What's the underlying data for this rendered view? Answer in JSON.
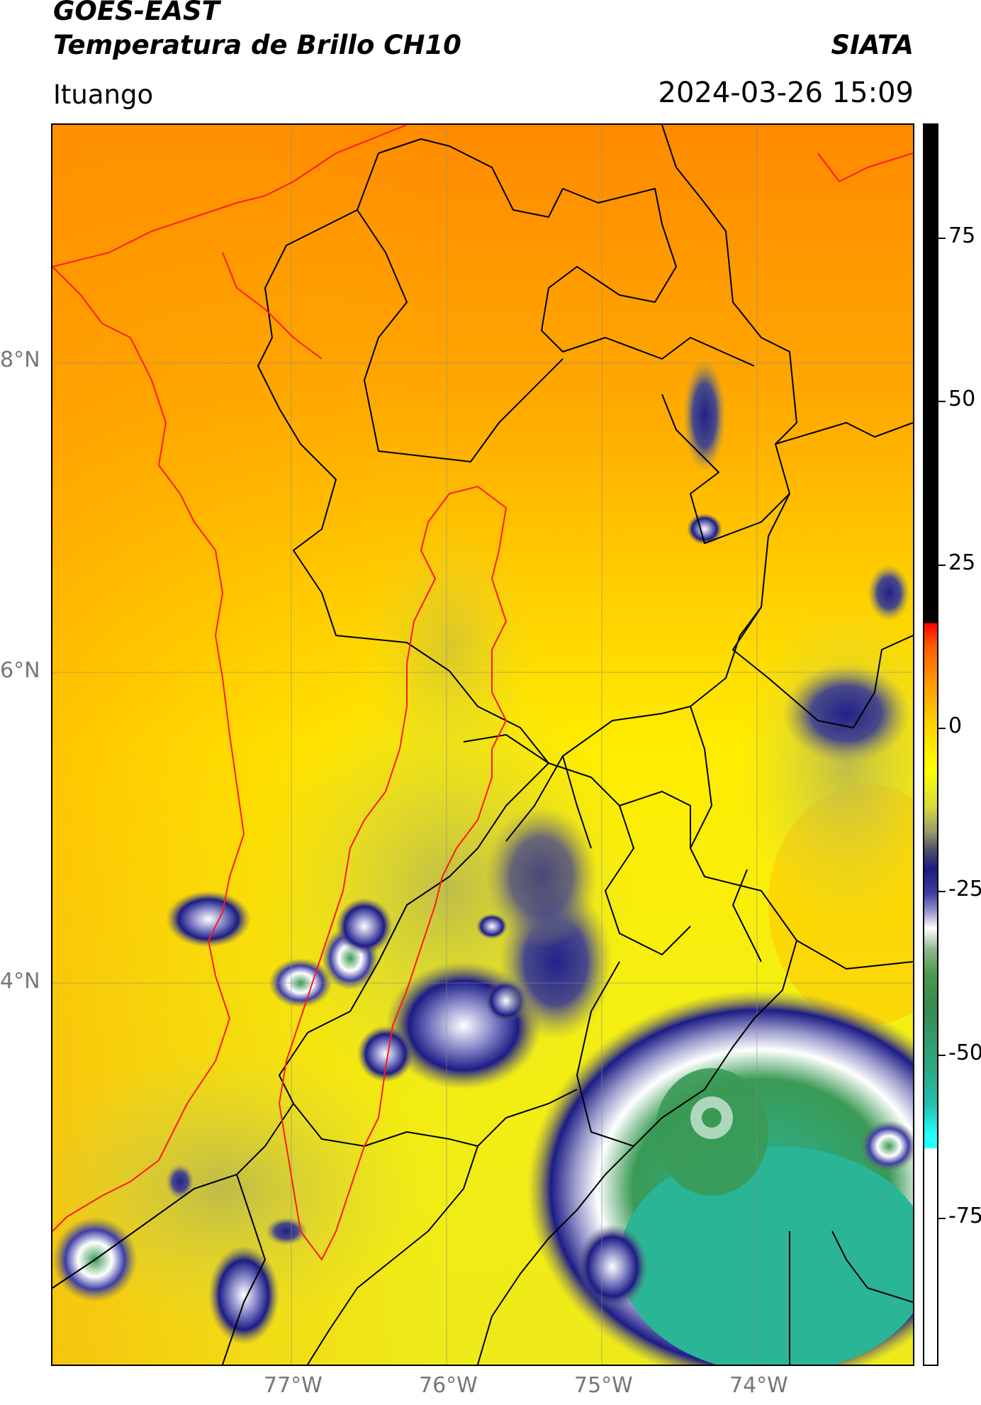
{
  "header": {
    "title_line1": "GOES-EAST",
    "title_line2": "Temperatura de Brillo CH10",
    "organization": "SIATA",
    "region": "Ituango",
    "timestamp": "2024-03-26 15:09"
  },
  "map": {
    "latitude_labels": [
      {
        "text": "8°N",
        "value": 8
      },
      {
        "text": "6°N",
        "value": 6
      },
      {
        "text": "4°N",
        "value": 4
      }
    ],
    "longitude_labels": [
      {
        "text": "77°W",
        "value": -77
      },
      {
        "text": "76°W",
        "value": -76
      },
      {
        "text": "75°W",
        "value": -75
      },
      {
        "text": "74°W",
        "value": -74
      }
    ],
    "colors": {
      "warm_background": "#ffa500",
      "border_lines": "#000000",
      "coast_and_basin": "#ff0000",
      "cold_cloud_tops": "#2bb596"
    }
  },
  "colorbar": {
    "ticks": [
      {
        "text": "75",
        "value": 75
      },
      {
        "text": "50",
        "value": 50
      },
      {
        "text": "25",
        "value": 25
      },
      {
        "text": "0",
        "value": 0
      },
      {
        "text": "-25",
        "value": -25
      },
      {
        "text": "-50",
        "value": -50
      },
      {
        "text": "-75",
        "value": -75
      }
    ],
    "range": [
      -90,
      90
    ]
  }
}
